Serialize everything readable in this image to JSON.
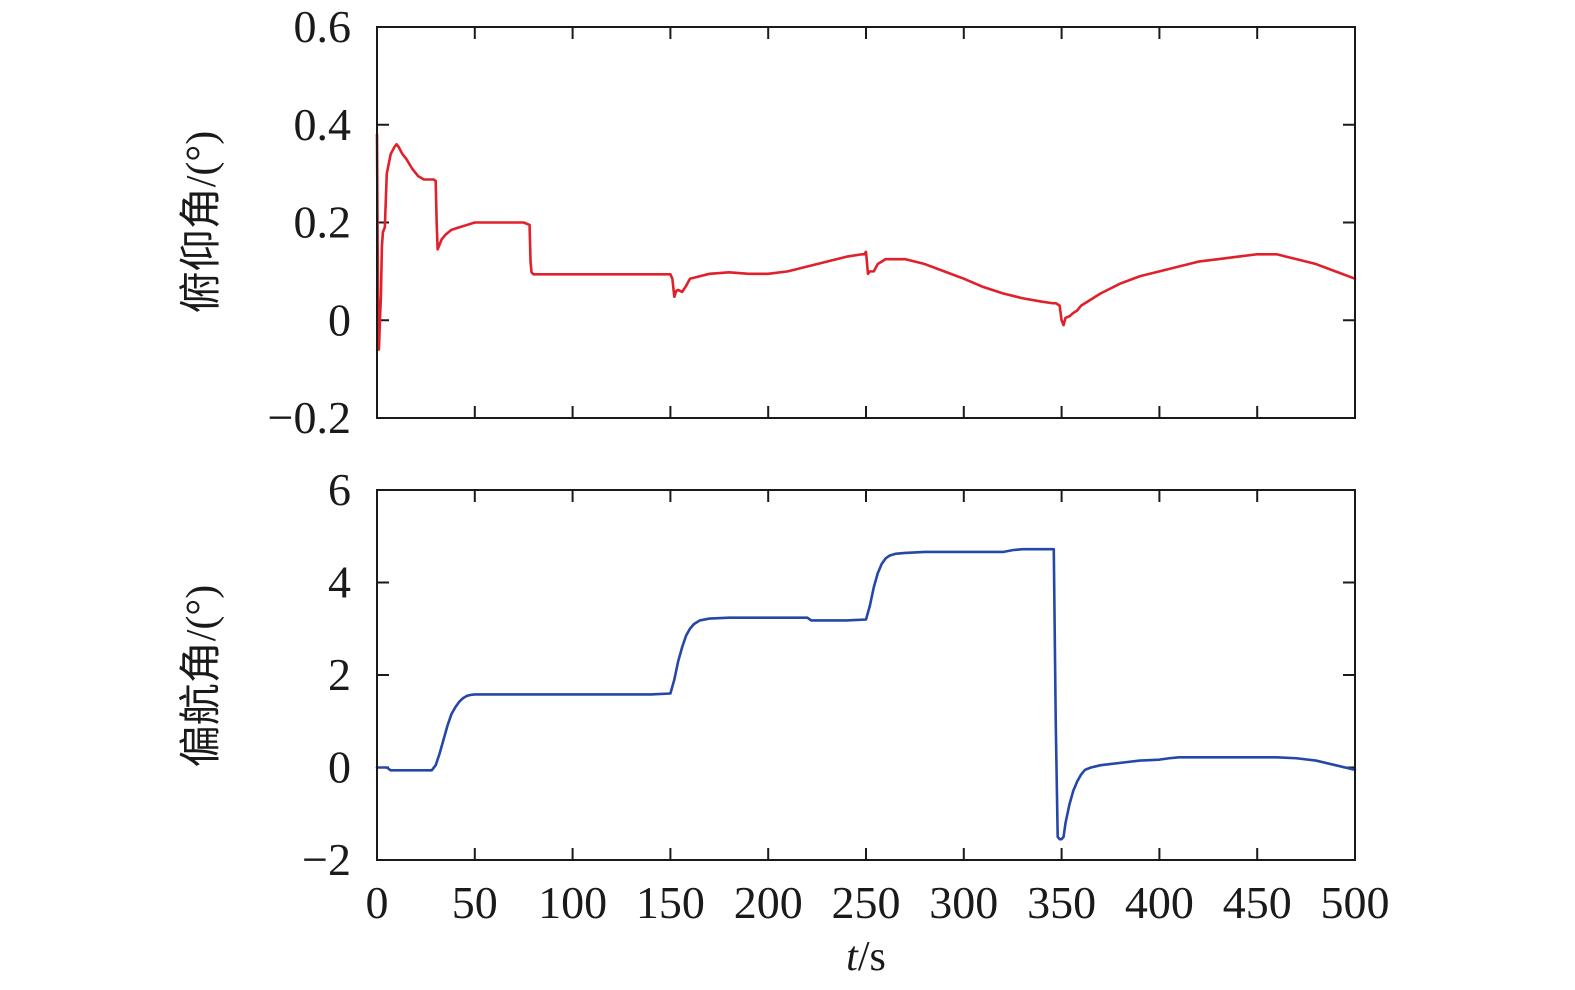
{
  "colors": {
    "pitch": "#e0202a",
    "yaw": "#2548a8",
    "axes": "#1a1a1a"
  },
  "chart_data": [
    {
      "type": "line",
      "ylabel": "俯仰角/(°)",
      "xlabel": "",
      "xlim": [
        0,
        500
      ],
      "ylim": [
        -0.2,
        0.6
      ],
      "xticks": [
        0,
        50,
        100,
        150,
        200,
        250,
        300,
        350,
        400,
        450,
        500
      ],
      "yticks": [
        -0.2,
        0,
        0.2,
        0.4,
        0.6
      ],
      "ytick_labels": [
        "−0.2",
        "0",
        "0.2",
        "0.4",
        "0.6"
      ],
      "show_xtick_labels": false,
      "grid": false,
      "series": [
        {
          "color": "#e0202a",
          "x": [
            0,
            0.5,
            1,
            1.5,
            2,
            2.5,
            3,
            4,
            5,
            7,
            9,
            10,
            11,
            13,
            15,
            18,
            21,
            24,
            27,
            29,
            30,
            30.5,
            31,
            32,
            33,
            35,
            38,
            42,
            46,
            50,
            60,
            70,
            75,
            78,
            78.5,
            79,
            80,
            82,
            85,
            100,
            120,
            140,
            150,
            151,
            152,
            153,
            154,
            156,
            158,
            160,
            165,
            170,
            180,
            190,
            200,
            210,
            220,
            230,
            240,
            248,
            249,
            250,
            251,
            252,
            254,
            256,
            258,
            260,
            270,
            280,
            290,
            300,
            310,
            320,
            330,
            340,
            345,
            347,
            349,
            350,
            351,
            352,
            354,
            356,
            358,
            360,
            370,
            380,
            390,
            400,
            410,
            420,
            430,
            440,
            450,
            455,
            460,
            465,
            470,
            480,
            490,
            500
          ],
          "y": [
            0.38,
            0.05,
            -0.06,
            0.0,
            0.05,
            0.15,
            0.18,
            0.19,
            0.3,
            0.34,
            0.355,
            0.36,
            0.355,
            0.34,
            0.33,
            0.31,
            0.295,
            0.288,
            0.288,
            0.288,
            0.285,
            0.2,
            0.145,
            0.155,
            0.165,
            0.175,
            0.185,
            0.19,
            0.195,
            0.2,
            0.2,
            0.2,
            0.2,
            0.195,
            0.12,
            0.098,
            0.094,
            0.094,
            0.094,
            0.094,
            0.094,
            0.094,
            0.094,
            0.085,
            0.048,
            0.06,
            0.062,
            0.058,
            0.07,
            0.085,
            0.09,
            0.095,
            0.098,
            0.095,
            0.095,
            0.1,
            0.11,
            0.12,
            0.13,
            0.135,
            0.135,
            0.14,
            0.095,
            0.1,
            0.1,
            0.115,
            0.12,
            0.125,
            0.125,
            0.115,
            0.1,
            0.085,
            0.068,
            0.055,
            0.045,
            0.038,
            0.035,
            0.035,
            0.03,
            0.0,
            -0.01,
            0.005,
            0.008,
            0.015,
            0.02,
            0.03,
            0.055,
            0.075,
            0.09,
            0.1,
            0.11,
            0.12,
            0.125,
            0.13,
            0.135,
            0.135,
            0.135,
            0.13,
            0.125,
            0.115,
            0.1,
            0.085
          ]
        }
      ]
    },
    {
      "type": "line",
      "ylabel": "偏航角/(°)",
      "xlabel": "t/s",
      "xlim": [
        0,
        500
      ],
      "ylim": [
        -2,
        6
      ],
      "xticks": [
        0,
        50,
        100,
        150,
        200,
        250,
        300,
        350,
        400,
        450,
        500
      ],
      "xtick_labels": [
        "0",
        "50",
        "100",
        "150",
        "200",
        "250",
        "300",
        "350",
        "400",
        "450",
        "500"
      ],
      "yticks": [
        -2,
        0,
        2,
        4,
        6
      ],
      "ytick_labels": [
        "−2",
        "0",
        "2",
        "4",
        "6"
      ],
      "show_xtick_labels": true,
      "grid": false,
      "series": [
        {
          "color": "#2548a8",
          "x": [
            0,
            5,
            7,
            10,
            20,
            28,
            30,
            32,
            34,
            36,
            38,
            40,
            42,
            44,
            46,
            48,
            50,
            60,
            80,
            100,
            120,
            140,
            150,
            152,
            154,
            156,
            158,
            160,
            162,
            165,
            170,
            180,
            200,
            220,
            222,
            230,
            240,
            250,
            252,
            254,
            256,
            258,
            260,
            262,
            265,
            270,
            280,
            290,
            300,
            310,
            320,
            325,
            330,
            340,
            346,
            347,
            348,
            349,
            350,
            351,
            352,
            354,
            356,
            358,
            360,
            362,
            365,
            370,
            380,
            390,
            400,
            405,
            410,
            420,
            440,
            460,
            470,
            480,
            490,
            495,
            500
          ],
          "y": [
            0.0,
            0.0,
            -0.06,
            -0.06,
            -0.06,
            -0.06,
            0.05,
            0.3,
            0.6,
            0.9,
            1.15,
            1.3,
            1.42,
            1.5,
            1.55,
            1.57,
            1.58,
            1.58,
            1.58,
            1.58,
            1.58,
            1.58,
            1.6,
            1.9,
            2.3,
            2.6,
            2.85,
            3.0,
            3.1,
            3.18,
            3.22,
            3.24,
            3.24,
            3.24,
            3.18,
            3.18,
            3.18,
            3.2,
            3.5,
            3.9,
            4.2,
            4.4,
            4.52,
            4.58,
            4.62,
            4.64,
            4.66,
            4.66,
            4.66,
            4.66,
            4.66,
            4.7,
            4.72,
            4.72,
            4.72,
            1.0,
            -1.5,
            -1.55,
            -1.55,
            -1.5,
            -1.2,
            -0.8,
            -0.5,
            -0.3,
            -0.15,
            -0.05,
            0.0,
            0.05,
            0.1,
            0.15,
            0.17,
            0.2,
            0.22,
            0.22,
            0.22,
            0.22,
            0.2,
            0.15,
            0.05,
            0.0,
            -0.05
          ]
        }
      ]
    }
  ]
}
